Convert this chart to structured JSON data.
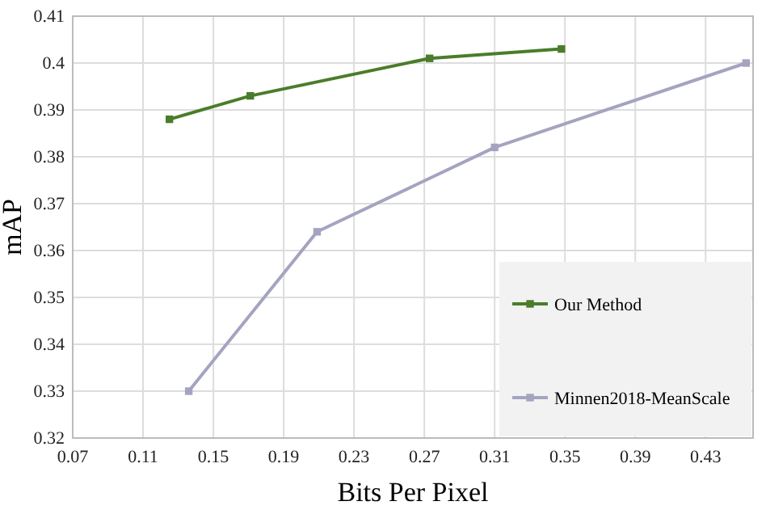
{
  "chart_data": {
    "type": "line",
    "xlabel": "Bits Per Pixel",
    "ylabel": "mAP",
    "xlim": [
      0.07,
      0.457
    ],
    "xticks": [
      0.07,
      0.11,
      0.15,
      0.19,
      0.23,
      0.27,
      0.31,
      0.35,
      0.39,
      0.43
    ],
    "ylim": [
      0.32,
      0.41
    ],
    "yticks": [
      0.32,
      0.33,
      0.34,
      0.35,
      0.36,
      0.37,
      0.38,
      0.39,
      0.4,
      0.41
    ],
    "grid": true,
    "legend": "bottom right",
    "marker": "square",
    "line_style": "solid",
    "series": [
      {
        "name": "Our Method",
        "color": "#4a7d2b",
        "x": [
          0.125,
          0.171,
          0.273,
          0.348
        ],
        "values": [
          0.388,
          0.393,
          0.401,
          0.403
        ]
      },
      {
        "name": "Minnen2018-MeanScale",
        "color": "#a4a4c1",
        "x": [
          0.136,
          0.209,
          0.31,
          0.453
        ],
        "values": [
          0.33,
          0.364,
          0.382,
          0.4
        ]
      }
    ]
  }
}
